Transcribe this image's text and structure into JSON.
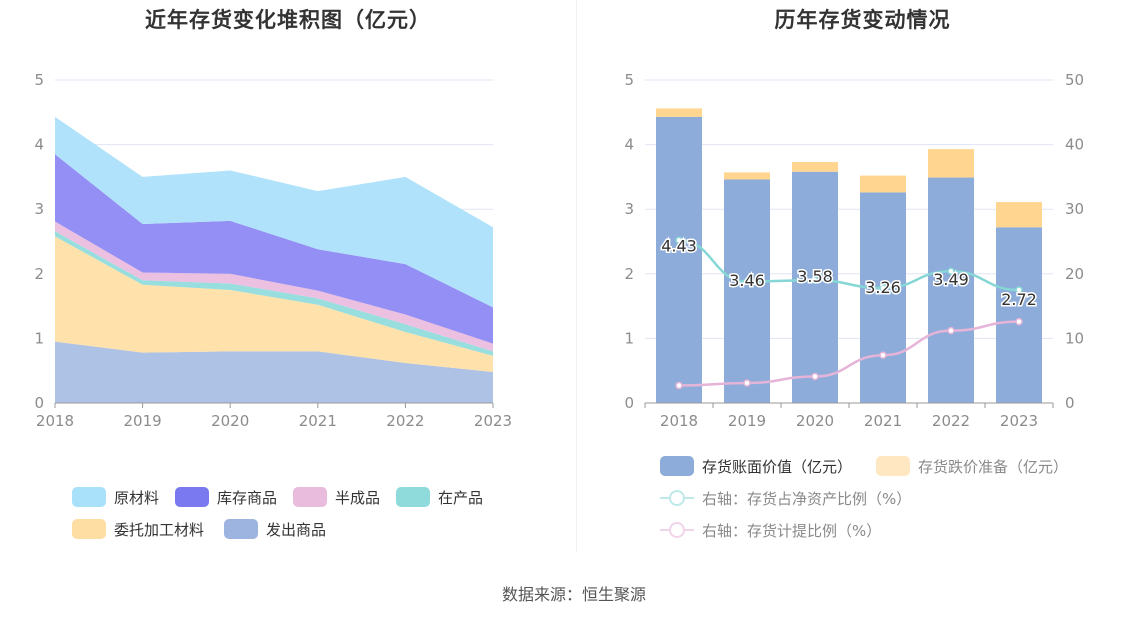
{
  "source": "数据来源：恒生聚源",
  "colors": {
    "yuan_cailiao": "#a9e1fb",
    "kucun_shangpin": "#8b86f3",
    "ban_chengpin": "#e9bbdd",
    "zai_chanpin": "#8fdbdb",
    "weituo_jiagong": "#ffdea4",
    "fachu_shangpin": "#a7bde3",
    "book_value": "#8dacd9",
    "provision": "#ffd58f",
    "ratio_net_assets": "#87d6d6",
    "ratio_provision": "#e5b4d8",
    "grid": "#e1e5f4",
    "axis": "#999999"
  },
  "chart_data": [
    {
      "type": "area",
      "stacked": true,
      "title": "近年存货变化堆积图（亿元）",
      "x": [
        "2018",
        "2019",
        "2020",
        "2021",
        "2022",
        "2023"
      ],
      "ylim": [
        0,
        5
      ],
      "yticks": [
        "0",
        "1",
        "2",
        "3",
        "4",
        "5"
      ],
      "grid": true,
      "legend_position": "bottom",
      "series": [
        {
          "name": "发出商品",
          "color": "#a7bde3",
          "values": [
            0.95,
            0.78,
            0.8,
            0.8,
            0.62,
            0.48
          ]
        },
        {
          "name": "委托加工材料",
          "color": "#ffdea4",
          "values": [
            1.63,
            1.05,
            0.95,
            0.72,
            0.48,
            0.25
          ]
        },
        {
          "name": "在产品",
          "color": "#8fdbdb",
          "values": [
            0.08,
            0.07,
            0.1,
            0.1,
            0.12,
            0.07
          ]
        },
        {
          "name": "半成品",
          "color": "#e9bbdd",
          "values": [
            0.15,
            0.12,
            0.15,
            0.12,
            0.15,
            0.12
          ]
        },
        {
          "name": "库存商品",
          "color": "#8b86f3",
          "values": [
            1.04,
            0.75,
            0.82,
            0.64,
            0.78,
            0.56
          ]
        },
        {
          "name": "原材料",
          "color": "#a9e1fb",
          "values": [
            0.58,
            0.73,
            0.78,
            0.9,
            1.35,
            1.24
          ]
        }
      ],
      "legend_order": [
        "原材料",
        "库存商品",
        "半成品",
        "在产品",
        "委托加工材料",
        "发出商品"
      ]
    },
    {
      "type": "bar",
      "stacked": true,
      "title": "历年存货变动情况",
      "categories": [
        "2018",
        "2019",
        "2020",
        "2021",
        "2022",
        "2023"
      ],
      "ylim": [
        0,
        5
      ],
      "yticks": [
        "0",
        "1",
        "2",
        "3",
        "4",
        "5"
      ],
      "y2lim": [
        0,
        50
      ],
      "y2ticks": [
        "0",
        "10",
        "20",
        "30",
        "40",
        "50"
      ],
      "grid": true,
      "legend_position": "bottom",
      "series": [
        {
          "name": "存货账面价值（亿元）",
          "kind": "bar",
          "color": "#8dacd9",
          "values": [
            4.43,
            3.46,
            3.58,
            3.26,
            3.49,
            2.72
          ],
          "labels": [
            "4.43",
            "3.46",
            "3.58",
            "3.26",
            "3.49",
            "2.72"
          ]
        },
        {
          "name": "存货跌价准备（亿元）",
          "kind": "bar",
          "color": "#ffd58f",
          "values": [
            0.13,
            0.11,
            0.15,
            0.26,
            0.44,
            0.39
          ]
        },
        {
          "name": "右轴：存货占净资产比例（%）",
          "kind": "line",
          "axis": "right",
          "color": "#87d6d6",
          "values": [
            25.2,
            18.8,
            19.0,
            17.8,
            20.4,
            17.5
          ]
        },
        {
          "name": "右轴：存货计提比例（%）",
          "kind": "line",
          "axis": "right",
          "color": "#e5b4d8",
          "values": [
            2.7,
            3.1,
            4.1,
            7.4,
            11.2,
            12.6
          ]
        }
      ]
    }
  ]
}
